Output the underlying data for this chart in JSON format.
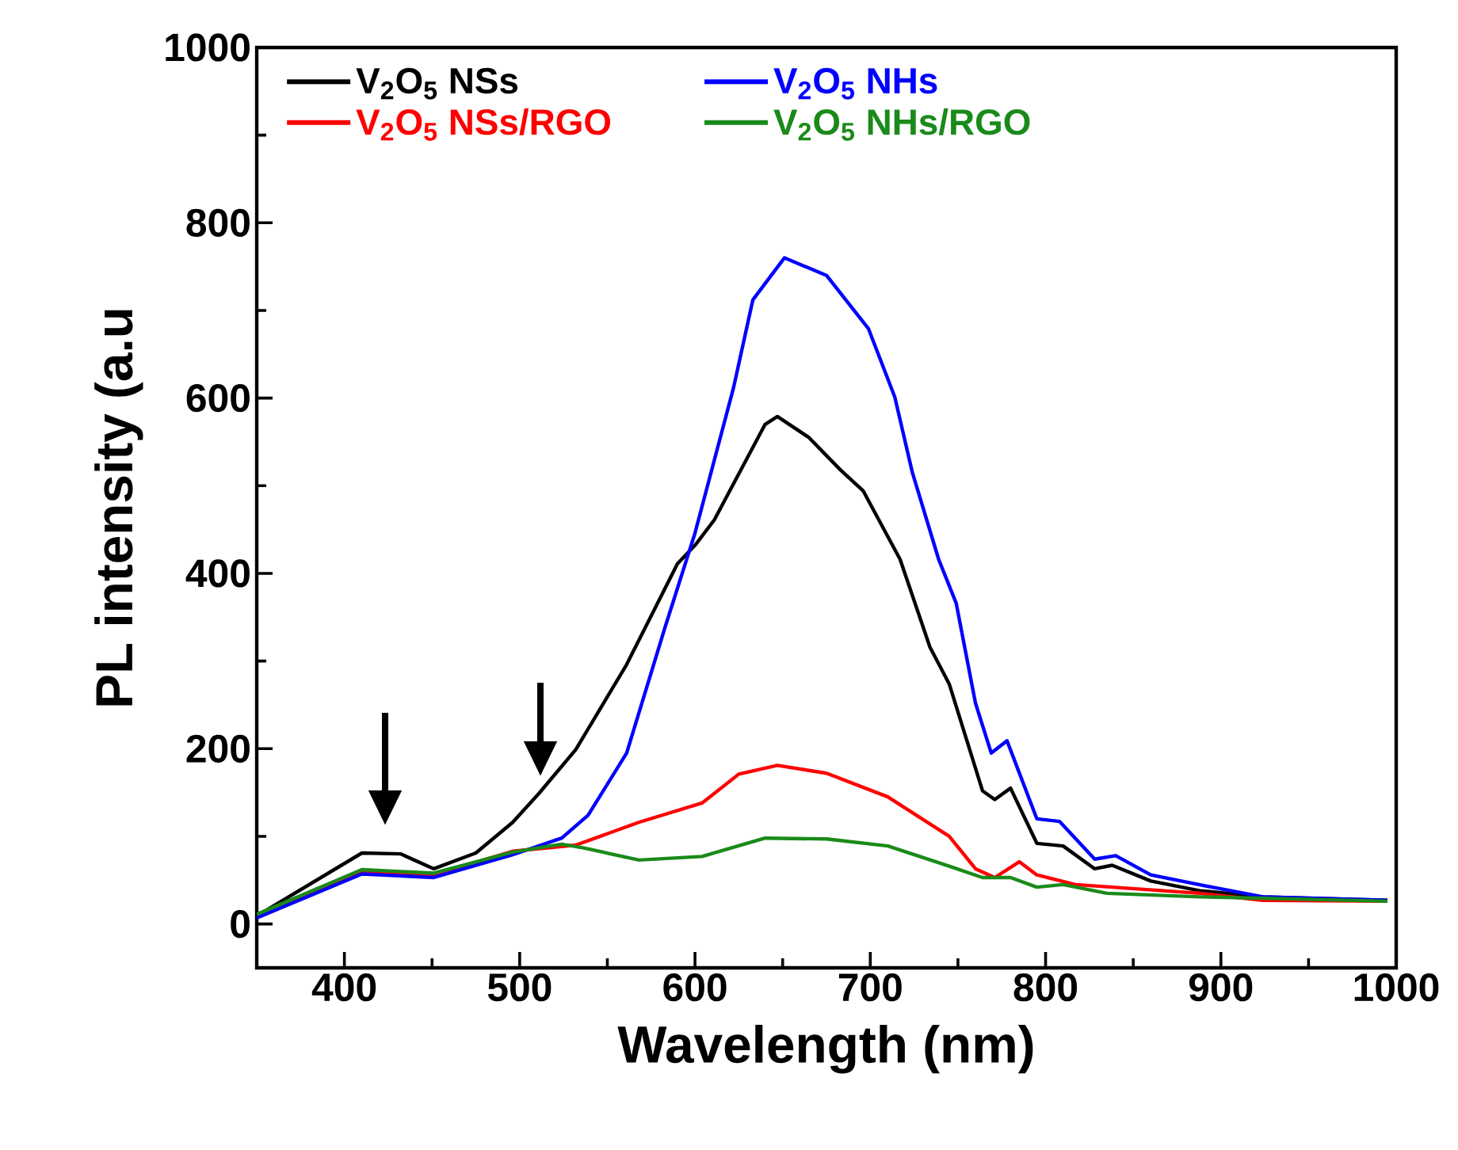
{
  "chart_data": {
    "type": "line",
    "xlabel": "Wavelength (nm)",
    "ylabel": "PL intensity (a.u",
    "xlim": [
      350,
      1000
    ],
    "ylim": [
      -50,
      1000
    ],
    "xticks": [
      400,
      500,
      600,
      700,
      800,
      900,
      1000
    ],
    "yticks": [
      0,
      200,
      400,
      600,
      800,
      1000
    ],
    "legend": "top left",
    "grid": false,
    "marker": "none",
    "line_style": "solid",
    "series": [
      {
        "name": "V$_{2}$O$_{5}$ NSs",
        "color": "#000000",
        "x": [
          350,
          410,
          432,
          451,
          475,
          496,
          511,
          532,
          561,
          590,
          600,
          611,
          640,
          647,
          665,
          683,
          696,
          717,
          734,
          745,
          764,
          771,
          780,
          795,
          810,
          828,
          838,
          860,
          888,
          924,
          995
        ],
        "values": [
          9,
          81,
          80,
          63,
          81,
          116,
          149,
          199,
          296,
          411,
          432,
          461,
          570,
          579,
          555,
          518,
          494,
          416,
          316,
          274,
          152,
          142,
          155,
          92,
          89,
          63,
          67,
          49,
          38,
          31,
          27
        ]
      },
      {
        "name": "V$_{2}$O$_{5}$ NSs/RGO",
        "color": "#ff0000",
        "x": [
          350,
          410,
          451,
          496,
          532,
          568,
          604,
          625,
          647,
          675,
          710,
          745,
          760,
          771,
          785,
          795,
          817,
          838,
          888,
          924,
          995
        ],
        "values": [
          9,
          60,
          56,
          83,
          90,
          116,
          138,
          171,
          181,
          172,
          145,
          100,
          63,
          53,
          71,
          56,
          45,
          42,
          35,
          27,
          26
        ]
      },
      {
        "name": "V$_{2}$O$_{5}$ NHs",
        "color": "#0000ff",
        "x": [
          350,
          410,
          451,
          496,
          524,
          539,
          561,
          583,
          600,
          622,
          633,
          651,
          675,
          699,
          714,
          724,
          739,
          749,
          760,
          769,
          778,
          795,
          808,
          828,
          840,
          860,
          895,
          924,
          995
        ],
        "values": [
          7,
          57,
          53,
          79,
          98,
          124,
          195,
          339,
          446,
          612,
          712,
          760,
          740,
          679,
          601,
          515,
          416,
          366,
          252,
          195,
          209,
          120,
          117,
          74,
          78,
          56,
          42,
          31,
          27
        ]
      },
      {
        "name": "V$_{2}$O$_{5}$ NHs/RGO",
        "color": "#1a8a1a",
        "x": [
          350,
          410,
          451,
          496,
          524,
          536,
          568,
          604,
          640,
          675,
          710,
          745,
          764,
          780,
          795,
          810,
          835,
          888,
          995
        ],
        "values": [
          11,
          62,
          58,
          82,
          91,
          87,
          73,
          77,
          98,
          97,
          89,
          66,
          53,
          53,
          42,
          45,
          35,
          31,
          26
        ]
      }
    ]
  }
}
